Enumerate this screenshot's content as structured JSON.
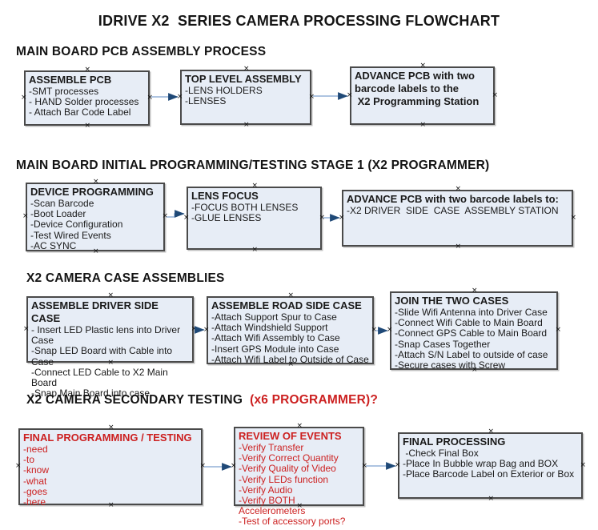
{
  "title": "IDRIVE X2  SERIES CAMERA PROCESSING FLOWCHART",
  "glyphs": {
    "handle": "×"
  },
  "colors": {
    "box_fill": "#e7edf6",
    "box_border": "#4a4a4a",
    "connector_line": "#93b1d7",
    "arrow_head": "#1f4977",
    "red_text": "#cc2020",
    "black_text": "#141414"
  },
  "sections": [
    {
      "heading": "MAIN BOARD PCB ASSEMBLY PROCESS",
      "boxes": [
        {
          "title": "ASSEMBLE PCB",
          "items": [
            "-SMT processes",
            "- HAND Solder processes",
            "- Attach Bar Code Label"
          ]
        },
        {
          "title": "TOP LEVEL ASSEMBLY",
          "items": [
            "-LENS HOLDERS",
            "-LENSES"
          ]
        },
        {
          "title": "ADVANCE PCB with two\nbarcode labels to the\n X2 Programming Station",
          "items": []
        }
      ]
    },
    {
      "heading": "MAIN BOARD INITIAL PROGRAMMING/TESTING STAGE 1 (X2 PROGRAMMER)",
      "boxes": [
        {
          "title": "DEVICE PROGRAMMING",
          "items": [
            "-Scan Barcode",
            "-Boot Loader",
            "-Device Configuration",
            "-Test Wired Events",
            "-AC SYNC"
          ]
        },
        {
          "title": "LENS FOCUS",
          "items": [
            "-FOCUS BOTH LENSES",
            "-GLUE LENSES"
          ]
        },
        {
          "title": "ADVANCE PCB with two barcode labels to:",
          "items": [
            "-X2 DRIVER  SIDE  CASE  ASSEMBLY STATION"
          ]
        }
      ]
    },
    {
      "heading": "X2 CAMERA CASE ASSEMBLIES",
      "boxes": [
        {
          "title": "ASSEMBLE DRIVER SIDE CASE",
          "items": [
            "- Insert LED Plastic lens into Driver Case",
            "-Snap LED Board with Cable into Case",
            "-Connect LED Cable to X2 Main Board",
            "-Snap Main Board into case"
          ]
        },
        {
          "title": "ASSEMBLE ROAD SIDE CASE",
          "items": [
            "-Attach Support Spur to Case",
            "-Attach Windshield Support",
            "-Attach Wifi Assembly to Case",
            "-Insert GPS Module into Case",
            "-Attach Wifi Label to Outside of Case"
          ]
        },
        {
          "title": "JOIN THE TWO CASES",
          "items": [
            "-Slide Wifi Antenna into Driver Case",
            "-Connect Wifi Cable to Main Board",
            "-Connect GPS Cable to Main Board",
            "-Snap Cases Together",
            "-Attach S/N Label to outside of case",
            "-Secure cases with Screw"
          ]
        }
      ]
    },
    {
      "heading_black": "X2 CAMERA SECONDARY TESTING",
      "heading_red": "  (x6 PROGRAMMER)?",
      "boxes": [
        {
          "title": "FINAL PROGRAMMING / TESTING",
          "items": [
            "-need",
            "-to",
            "-know",
            "-what",
            "-goes",
            "-here"
          ]
        },
        {
          "title": "REVIEW OF EVENTS",
          "items": [
            "-Verify Transfer",
            "-Verify Correct Quantity",
            "-Verify Quality of Video",
            "-Verify LEDs function",
            "-Verify Audio",
            "-Verify BOTH Accelerometers",
            "-Test of accessory ports?"
          ]
        },
        {
          "title": "FINAL PROCESSING",
          "items": [
            " -Check Final Box",
            "-Place In Bubble wrap Bag and BOX",
            "-Place Barcode Label on Exterior or Box"
          ]
        }
      ]
    }
  ]
}
